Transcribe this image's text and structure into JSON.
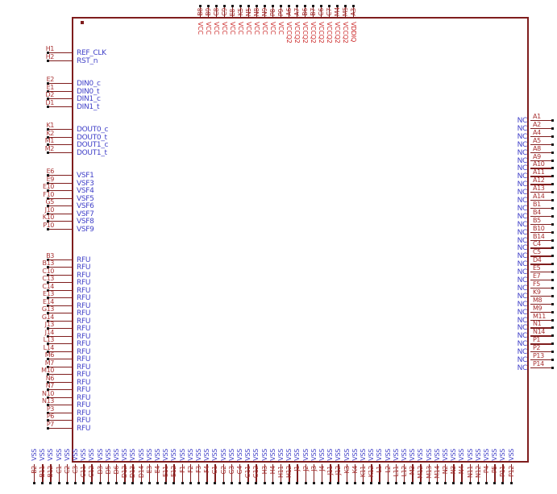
{
  "colors": {
    "outline": "#7f1d1d",
    "pin_number": "#a83232",
    "pin_name": "#3f3fc8",
    "power_pin_name": "#cc2a2a",
    "pin_endpoint": "#1a1a1a",
    "background": "#ffffff"
  },
  "pins": {
    "left_groups": [
      {
        "pins": [
          {
            "num": "H1",
            "label": "REF_CLK"
          },
          {
            "num": "H2",
            "label": "RST_n"
          }
        ]
      },
      {
        "pins": [
          {
            "num": "E2",
            "label": "DIN0_c"
          },
          {
            "num": "E1",
            "label": "DIN0_t"
          },
          {
            "num": "D2",
            "label": "DIN1_c"
          },
          {
            "num": "D1",
            "label": "DIN1_t"
          }
        ]
      },
      {
        "pins": [
          {
            "num": "K1",
            "label": "DOUT0_c"
          },
          {
            "num": "K2",
            "label": "DOUT0_t"
          },
          {
            "num": "M1",
            "label": "DOUT1_c"
          },
          {
            "num": "M2",
            "label": "DOUT1_t"
          }
        ]
      },
      {
        "pins": [
          {
            "num": "E6",
            "label": "VSF1"
          },
          {
            "num": "E9",
            "label": "VSF3"
          },
          {
            "num": "E10",
            "label": "VSF4"
          },
          {
            "num": "F10",
            "label": "VSF5"
          },
          {
            "num": "G5",
            "label": "VSF6"
          },
          {
            "num": "J10",
            "label": "VSF7"
          },
          {
            "num": "K10",
            "label": "VSF8"
          },
          {
            "num": "P10",
            "label": "VSF9"
          }
        ]
      },
      {
        "pins": [
          {
            "num": "B3",
            "label": "RFU"
          },
          {
            "num": "B13",
            "label": "RFU"
          },
          {
            "num": "C10",
            "label": "RFU"
          },
          {
            "num": "C13",
            "label": "RFU"
          },
          {
            "num": "C14",
            "label": "RFU"
          },
          {
            "num": "E13",
            "label": "RFU"
          },
          {
            "num": "E14",
            "label": "RFU"
          },
          {
            "num": "G13",
            "label": "RFU"
          },
          {
            "num": "G14",
            "label": "RFU"
          },
          {
            "num": "J13",
            "label": "RFU"
          },
          {
            "num": "J14",
            "label": "RFU"
          },
          {
            "num": "L13",
            "label": "RFU"
          },
          {
            "num": "L14",
            "label": "RFU"
          },
          {
            "num": "M6",
            "label": "RFU"
          },
          {
            "num": "M7",
            "label": "RFU"
          },
          {
            "num": "M10",
            "label": "RFU"
          },
          {
            "num": "N6",
            "label": "RFU"
          },
          {
            "num": "N7",
            "label": "RFU"
          },
          {
            "num": "N10",
            "label": "RFU"
          },
          {
            "num": "N13",
            "label": "RFU"
          },
          {
            "num": "P3",
            "label": "RFU"
          },
          {
            "num": "P6",
            "label": "RFU"
          },
          {
            "num": "P7",
            "label": "RFU"
          }
        ]
      }
    ],
    "top": [
      {
        "num": "B8",
        "label": "VCC"
      },
      {
        "num": "B9",
        "label": "VCC"
      },
      {
        "num": "C8",
        "label": "VCC"
      },
      {
        "num": "C9",
        "label": "VCC"
      },
      {
        "num": "E8",
        "label": "VCC"
      },
      {
        "num": "K5",
        "label": "VCC"
      },
      {
        "num": "N5",
        "label": "VCC"
      },
      {
        "num": "N8",
        "label": "VCC"
      },
      {
        "num": "N9",
        "label": "VCC"
      },
      {
        "num": "P8",
        "label": "VCC"
      },
      {
        "num": "P9",
        "label": "VCC"
      },
      {
        "num": "A6",
        "label": "VCCQ2"
      },
      {
        "num": "A7",
        "label": "VCCQ2"
      },
      {
        "num": "B6",
        "label": "VCCQ2"
      },
      {
        "num": "B7",
        "label": "VCCQ2"
      },
      {
        "num": "C6",
        "label": "VCCQ2"
      },
      {
        "num": "C7",
        "label": "VCCQ2"
      },
      {
        "num": "M4",
        "label": "VCCQ2"
      },
      {
        "num": "M5",
        "label": "VCCQ2"
      },
      {
        "num": "A3",
        "label": "VDDIQ"
      }
    ],
    "right": [
      {
        "num": "A1",
        "label": "NC"
      },
      {
        "num": "A2",
        "label": "NC"
      },
      {
        "num": "A4",
        "label": "NC"
      },
      {
        "num": "A5",
        "label": "NC"
      },
      {
        "num": "A8",
        "label": "NC"
      },
      {
        "num": "A9",
        "label": "NC"
      },
      {
        "num": "A10",
        "label": "NC"
      },
      {
        "num": "A11",
        "label": "NC"
      },
      {
        "num": "A12",
        "label": "NC"
      },
      {
        "num": "A13",
        "label": "NC"
      },
      {
        "num": "A14",
        "label": "NC"
      },
      {
        "num": "B1",
        "label": "NC"
      },
      {
        "num": "B4",
        "label": "NC"
      },
      {
        "num": "B5",
        "label": "NC"
      },
      {
        "num": "B10",
        "label": "NC"
      },
      {
        "num": "B14",
        "label": "NC"
      },
      {
        "num": "C4",
        "label": "NC"
      },
      {
        "num": "C5",
        "label": "NC"
      },
      {
        "num": "D4",
        "label": "NC"
      },
      {
        "num": "E5",
        "label": "NC"
      },
      {
        "num": "E7",
        "label": "NC"
      },
      {
        "num": "F5",
        "label": "NC"
      },
      {
        "num": "K9",
        "label": "NC"
      },
      {
        "num": "M8",
        "label": "NC"
      },
      {
        "num": "M9",
        "label": "NC"
      },
      {
        "num": "M11",
        "label": "NC"
      },
      {
        "num": "N1",
        "label": "NC"
      },
      {
        "num": "N14",
        "label": "NC"
      },
      {
        "num": "P1",
        "label": "NC"
      },
      {
        "num": "P2",
        "label": "NC"
      },
      {
        "num": "P13",
        "label": "NC"
      },
      {
        "num": "P14",
        "label": "NC"
      }
    ],
    "bottom": [
      {
        "num": "B2",
        "label": "VSS"
      },
      {
        "num": "B11",
        "label": "VSS"
      },
      {
        "num": "B12",
        "label": "VSS"
      },
      {
        "num": "C1",
        "label": "VSS"
      },
      {
        "num": "C2",
        "label": "VSS"
      },
      {
        "num": "C3",
        "label": "VSS"
      },
      {
        "num": "C11",
        "label": "VSS"
      },
      {
        "num": "C12",
        "label": "VSS"
      },
      {
        "num": "D3",
        "label": "VSS"
      },
      {
        "num": "D5",
        "label": "VSS"
      },
      {
        "num": "D6",
        "label": "VSS"
      },
      {
        "num": "D12",
        "label": "VSS"
      },
      {
        "num": "D13",
        "label": "VSS"
      },
      {
        "num": "D14",
        "label": "VSS"
      },
      {
        "num": "E3",
        "label": "VSS"
      },
      {
        "num": "E4",
        "label": "VSS"
      },
      {
        "num": "E11",
        "label": "VSS"
      },
      {
        "num": "E12",
        "label": "VSS"
      },
      {
        "num": "F1",
        "label": "VSS"
      },
      {
        "num": "F2",
        "label": "VSS"
      },
      {
        "num": "F3",
        "label": "VSS"
      },
      {
        "num": "F4",
        "label": "VSS"
      },
      {
        "num": "G1",
        "label": "VSS"
      },
      {
        "num": "G2",
        "label": "VSS"
      },
      {
        "num": "G3",
        "label": "VSS"
      },
      {
        "num": "G4",
        "label": "VSS"
      },
      {
        "num": "G11",
        "label": "VSS"
      },
      {
        "num": "G12",
        "label": "VSS"
      },
      {
        "num": "H3",
        "label": "VSS"
      },
      {
        "num": "H4",
        "label": "VSS"
      },
      {
        "num": "H11",
        "label": "VSS"
      },
      {
        "num": "H12",
        "label": "VSS"
      },
      {
        "num": "J1",
        "label": "VSS"
      },
      {
        "num": "J2",
        "label": "VSS"
      },
      {
        "num": "J3",
        "label": "VSS"
      },
      {
        "num": "J4",
        "label": "VSS"
      },
      {
        "num": "J11",
        "label": "VSS"
      },
      {
        "num": "J12",
        "label": "VSS"
      },
      {
        "num": "K3",
        "label": "VSS"
      },
      {
        "num": "K4",
        "label": "VSS"
      },
      {
        "num": "K11",
        "label": "VSS"
      },
      {
        "num": "K12",
        "label": "VSS"
      },
      {
        "num": "L1",
        "label": "VSS"
      },
      {
        "num": "L2",
        "label": "VSS"
      },
      {
        "num": "L11",
        "label": "VSS"
      },
      {
        "num": "L12",
        "label": "VSS"
      },
      {
        "num": "M3",
        "label": "VSS"
      },
      {
        "num": "M12",
        "label": "VSS"
      },
      {
        "num": "M13",
        "label": "VSS"
      },
      {
        "num": "M14",
        "label": "VSS"
      },
      {
        "num": "N2",
        "label": "VSS"
      },
      {
        "num": "N3",
        "label": "VSS"
      },
      {
        "num": "N4",
        "label": "VSS"
      },
      {
        "num": "N11",
        "label": "VSS"
      },
      {
        "num": "N12",
        "label": "VSS"
      },
      {
        "num": "P4",
        "label": "VSS"
      },
      {
        "num": "P5",
        "label": "VSS"
      },
      {
        "num": "P11",
        "label": "VSS"
      },
      {
        "num": "P12",
        "label": "VSS"
      }
    ]
  }
}
